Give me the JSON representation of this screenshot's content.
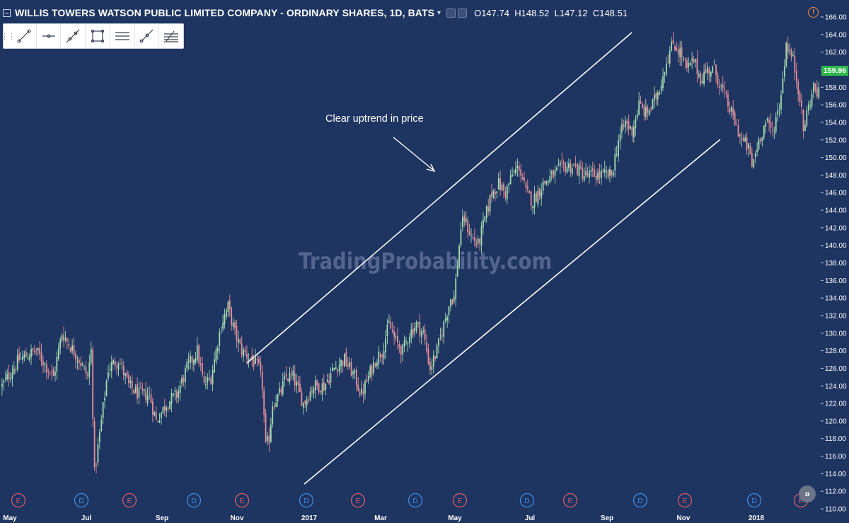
{
  "header": {
    "title": "WILLIS TOWERS WATSON PUBLIC LIMITED COMPANY - ORDINARY SHARES, 1D, BATS",
    "open_label": "O",
    "open": "147.74",
    "high_label": "H",
    "high": "148.52",
    "low_label": "L",
    "low": "147.12",
    "close_label": "C",
    "close": "148.51"
  },
  "toolbar": {
    "tools": [
      "trend-line-icon",
      "horizontal-ray-icon",
      "extended-line-icon",
      "rectangle-icon",
      "parallel-channel-icon",
      "ray-icon",
      "fib-retracement-icon"
    ]
  },
  "annotation": "Clear uptrend in price",
  "watermark": "TradingProbability.com",
  "last_price": "159.96",
  "colors": {
    "background": "#1e3461",
    "up": "#a3dcb0",
    "down": "#e58f98",
    "badge": "#2eb84b",
    "earnings": "#d95a6a",
    "dividend": "#3d8de0"
  },
  "chart_data": {
    "type": "candlestick",
    "ylim": [
      110,
      166
    ],
    "y_ticks": [
      "110.00",
      "112.00",
      "114.00",
      "116.00",
      "118.00",
      "120.00",
      "122.00",
      "124.00",
      "126.00",
      "128.00",
      "130.00",
      "132.00",
      "134.00",
      "136.00",
      "138.00",
      "140.00",
      "142.00",
      "144.00",
      "146.00",
      "148.00",
      "150.00",
      "152.00",
      "154.00",
      "156.00",
      "158.00",
      "160.00",
      "162.00",
      "164.00",
      "166.00"
    ],
    "x_ticks": [
      "May",
      "Jul",
      "Sep",
      "Nov",
      "2017",
      "Mar",
      "May",
      "Jul",
      "Sep",
      "Nov",
      "2018"
    ],
    "events": [
      "E",
      "D",
      "E",
      "D",
      "E",
      "D",
      "E",
      "D",
      "E",
      "D",
      "E",
      "D",
      "E",
      "D",
      "E"
    ],
    "anchors": [
      [
        0,
        124
      ],
      [
        10,
        127
      ],
      [
        20,
        128
      ],
      [
        30,
        125
      ],
      [
        35,
        130
      ],
      [
        45,
        127
      ],
      [
        50,
        125
      ],
      [
        52,
        128
      ],
      [
        54,
        114
      ],
      [
        58,
        120
      ],
      [
        62,
        126
      ],
      [
        68,
        127
      ],
      [
        74,
        124
      ],
      [
        80,
        123
      ],
      [
        86,
        123
      ],
      [
        90,
        120
      ],
      [
        96,
        122
      ],
      [
        102,
        123
      ],
      [
        108,
        126
      ],
      [
        114,
        128
      ],
      [
        118,
        124
      ],
      [
        122,
        125
      ],
      [
        128,
        131
      ],
      [
        132,
        133
      ],
      [
        136,
        130
      ],
      [
        140,
        128
      ],
      [
        146,
        127
      ],
      [
        150,
        126
      ],
      [
        152,
        124
      ],
      [
        154,
        117
      ],
      [
        156,
        118
      ],
      [
        158,
        122
      ],
      [
        162,
        123
      ],
      [
        166,
        125
      ],
      [
        170,
        125
      ],
      [
        176,
        122
      ],
      [
        182,
        124
      ],
      [
        188,
        124
      ],
      [
        194,
        126
      ],
      [
        200,
        127
      ],
      [
        206,
        125
      ],
      [
        210,
        123
      ],
      [
        214,
        125
      ],
      [
        218,
        127
      ],
      [
        222,
        128
      ],
      [
        226,
        131
      ],
      [
        230,
        129
      ],
      [
        234,
        128
      ],
      [
        238,
        130
      ],
      [
        242,
        131
      ],
      [
        246,
        130
      ],
      [
        250,
        126
      ],
      [
        254,
        128
      ],
      [
        258,
        131
      ],
      [
        262,
        134
      ],
      [
        264,
        134
      ],
      [
        266,
        138
      ],
      [
        268,
        142
      ],
      [
        270,
        143
      ],
      [
        274,
        141
      ],
      [
        278,
        140
      ],
      [
        282,
        143
      ],
      [
        286,
        146
      ],
      [
        290,
        147
      ],
      [
        294,
        146
      ],
      [
        298,
        148
      ],
      [
        302,
        149
      ],
      [
        306,
        146
      ],
      [
        310,
        145
      ],
      [
        316,
        147
      ],
      [
        322,
        148
      ],
      [
        328,
        149
      ],
      [
        334,
        149
      ],
      [
        340,
        148
      ],
      [
        346,
        148
      ],
      [
        352,
        148
      ],
      [
        356,
        148
      ],
      [
        360,
        152
      ],
      [
        364,
        154
      ],
      [
        368,
        153
      ],
      [
        372,
        156
      ],
      [
        376,
        155
      ],
      [
        380,
        156
      ],
      [
        384,
        158
      ],
      [
        388,
        161
      ],
      [
        392,
        163
      ],
      [
        396,
        162
      ],
      [
        400,
        160
      ],
      [
        404,
        161
      ],
      [
        408,
        159
      ],
      [
        412,
        160
      ],
      [
        416,
        160
      ],
      [
        420,
        158
      ],
      [
        424,
        156
      ],
      [
        428,
        154
      ],
      [
        432,
        152
      ],
      [
        436,
        151
      ],
      [
        438,
        149
      ],
      [
        442,
        152
      ],
      [
        446,
        154
      ],
      [
        450,
        153
      ],
      [
        454,
        156
      ],
      [
        456,
        159
      ],
      [
        458,
        163
      ],
      [
        462,
        161
      ],
      [
        466,
        157
      ],
      [
        468,
        153
      ],
      [
        470,
        155
      ],
      [
        474,
        158
      ],
      [
        478,
        157
      ]
    ],
    "channel_lines": {
      "upper": [
        [
          "2016-11-01",
          126.6
        ],
        [
          "2017-09-30",
          164.1
        ]
      ],
      "lower": [
        [
          "2016-12-15",
          113.6
        ],
        [
          "2017-11-15",
          152.2
        ]
      ]
    }
  }
}
